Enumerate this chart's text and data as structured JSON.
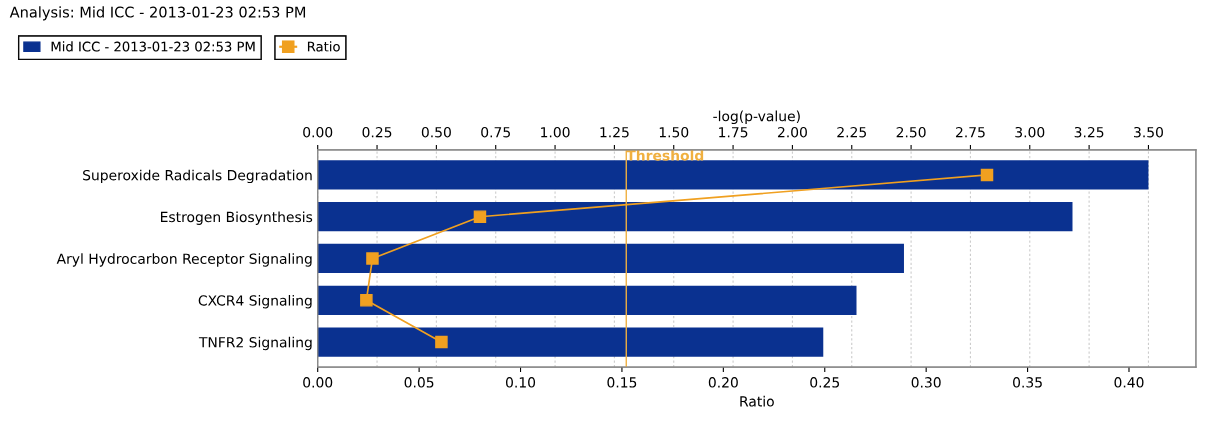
{
  "chart_data": {
    "type": "bar",
    "orientation": "horizontal",
    "title": "Analysis: Mid ICC - 2013-01-23 02:53 PM",
    "categories": [
      "Superoxide Radicals Degradation",
      "Estrogen Biosynthesis",
      "Aryl Hydrocarbon Receptor Signaling",
      "CXCR4 Signaling",
      "TNFR2 Signaling"
    ],
    "series": [
      {
        "name": "Mid ICC - 2013-01-23 02:53 PM",
        "color": "#0a3190",
        "axis": "x2",
        "values": [
          3.5,
          3.18,
          2.47,
          2.27,
          2.13
        ]
      },
      {
        "name": "Ratio",
        "type": "line",
        "color": "#f0a020",
        "marker": "square",
        "values": [
          0.33,
          0.08,
          0.027,
          0.024,
          0.061
        ]
      }
    ],
    "xlabel": "Ratio",
    "xlim": [
      0,
      0.433
    ],
    "xticks": [
      {
        "value": 0,
        "label": "0.00"
      },
      0.05,
      {
        "value": 0.1,
        "label": "0.10"
      },
      0.15,
      {
        "value": 0.2,
        "label": "0.20"
      },
      0.25,
      {
        "value": 0.3,
        "label": "0.30"
      },
      0.35,
      {
        "value": 0.4,
        "label": "0.40"
      }
    ],
    "x2label": "-log(p-value)",
    "x2lim": [
      0,
      3.7
    ],
    "x2ticks": [
      {
        "value": 0,
        "label": "0.00"
      },
      0.25,
      {
        "value": 0.5,
        "label": "0.50"
      },
      0.75,
      {
        "value": 1,
        "label": "1.00"
      },
      1.25,
      {
        "value": 1.5,
        "label": "1.50"
      },
      1.75,
      {
        "value": 2,
        "label": "2.00"
      },
      2.25,
      {
        "value": 2.5,
        "label": "2.50"
      },
      2.75,
      {
        "value": 3,
        "label": "3.00"
      },
      3.25,
      {
        "value": 3.5,
        "label": "3.50"
      }
    ],
    "ref_lines": [
      {
        "axis": "x2",
        "value": 1.3,
        "label": "Threshold",
        "color": "#f0b040"
      }
    ],
    "grid": "x",
    "legend": "top left"
  }
}
